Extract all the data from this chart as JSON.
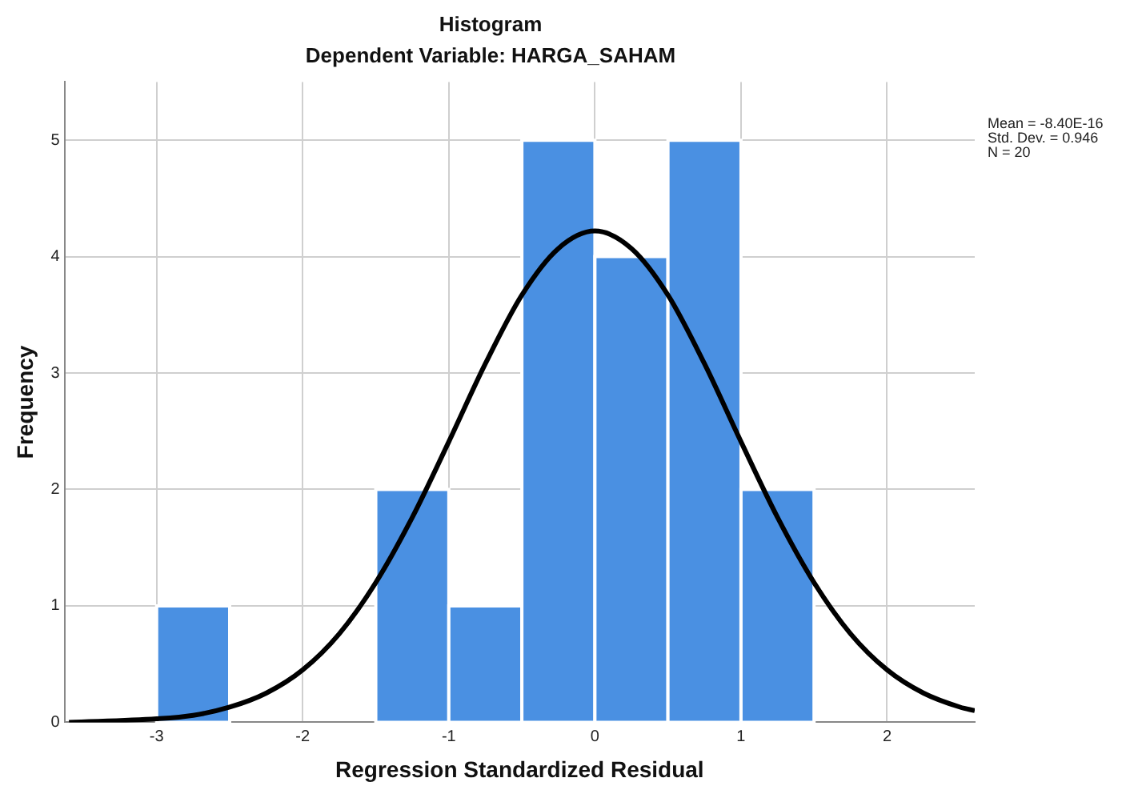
{
  "chart_data": {
    "type": "histogram",
    "title": "Histogram",
    "subtitle": "Dependent Variable: HARGA_SAHAM",
    "xlabel": "Regression Standardized Residual",
    "ylabel": "Frequency",
    "bins": [
      -3,
      -2.5,
      -2,
      -1.5,
      -1,
      -0.5,
      0,
      0.5,
      1,
      1.5
    ],
    "values": [
      1,
      0,
      0,
      2,
      1,
      5,
      4,
      5,
      2
    ],
    "color": "#4a90e2",
    "series": [
      {
        "type": "line",
        "color": "#000000",
        "x": [
          -3.6,
          -3,
          -2.75,
          -2.5,
          -2.25,
          -2,
          -1.75,
          -1.5,
          -1.25,
          -1,
          -0.75,
          -0.5,
          -0.25,
          0,
          0.25,
          0.5,
          0.75,
          1,
          1.25,
          1.5,
          1.75,
          2,
          2.25,
          2.5,
          2.6
        ],
        "values": [
          0.0,
          0.03,
          0.06,
          0.13,
          0.25,
          0.45,
          0.76,
          1.2,
          1.76,
          2.41,
          3.08,
          3.67,
          4.07,
          4.22,
          4.07,
          3.67,
          3.08,
          2.41,
          1.76,
          1.2,
          0.76,
          0.45,
          0.25,
          0.13,
          0.1
        ]
      }
    ],
    "xlim": [
      -3.63,
      2.6
    ],
    "xticks": [
      -3,
      -2,
      -1,
      0,
      1,
      2
    ],
    "ylim": [
      0,
      5.5
    ],
    "yticks": [
      0,
      1,
      2,
      3,
      4,
      5
    ],
    "grid": true,
    "legend": false,
    "annotations": [
      "Mean = -8.40E-16",
      "Std. Dev. = 0.946",
      "N = 20"
    ]
  }
}
